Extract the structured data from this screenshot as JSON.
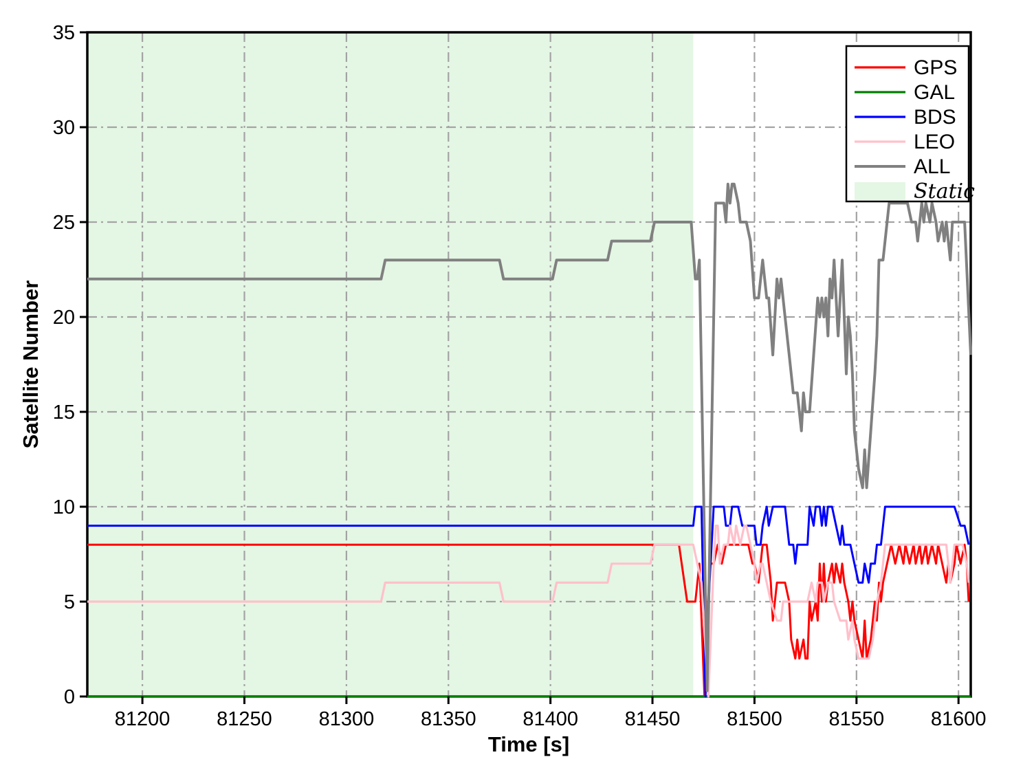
{
  "figure": {
    "xlabel": "Time [s]",
    "ylabel": "Satellite Number"
  },
  "chart_data": {
    "type": "line",
    "title": "",
    "xlabel": "Time [s]",
    "ylabel": "Satellite Number",
    "xlim": [
      81173,
      81606
    ],
    "ylim": [
      0,
      35
    ],
    "x_ticks": [
      81200,
      81250,
      81300,
      81350,
      81400,
      81450,
      81500,
      81550,
      81600
    ],
    "x_tick_labels": [
      "81200",
      "81250",
      "81300",
      "81350",
      "81400",
      "81450",
      "81500",
      "81550",
      "81600"
    ],
    "y_ticks": [
      0,
      5,
      10,
      15,
      20,
      25,
      30,
      35
    ],
    "y_tick_labels": [
      "0",
      "5",
      "10",
      "15",
      "20",
      "25",
      "30",
      "35"
    ],
    "grid": "dash-dot",
    "grid_color": "#a3a3a3",
    "legend_position": "upper right",
    "static_region": {
      "label": "Static",
      "x_start": 81173,
      "x_end": 81470,
      "color": "#e4f6e4"
    },
    "legend": [
      {
        "label": "GPS",
        "color": "#ff0000",
        "type": "line",
        "italic": false
      },
      {
        "label": "GAL",
        "color": "#008000",
        "type": "line",
        "italic": false
      },
      {
        "label": "BDS",
        "color": "#0000ff",
        "type": "line",
        "italic": false
      },
      {
        "label": "LEO",
        "color": "#ffc0cb",
        "type": "line",
        "italic": false
      },
      {
        "label": "ALL",
        "color": "#808080",
        "type": "line",
        "italic": false
      },
      {
        "label": "Static",
        "color": "#e4f6e4",
        "type": "patch",
        "italic": true
      }
    ],
    "series": [
      {
        "name": "GPS",
        "color": "#ff0000",
        "width": 3,
        "points": [
          [
            81173,
            8
          ],
          [
            81463,
            8
          ],
          [
            81467,
            5
          ],
          [
            81471,
            5
          ],
          [
            81473,
            7
          ],
          [
            81475.5,
            0
          ],
          [
            81478,
            7
          ],
          [
            81480,
            7
          ],
          [
            81482,
            8
          ],
          [
            81484,
            7
          ],
          [
            81486,
            8
          ],
          [
            81497,
            8
          ],
          [
            81499,
            7
          ],
          [
            81500,
            7
          ],
          [
            81502,
            6
          ],
          [
            81504,
            8
          ],
          [
            81506,
            8
          ],
          [
            81507,
            7
          ],
          [
            81508,
            6
          ],
          [
            81509,
            4
          ],
          [
            81511,
            6
          ],
          [
            81515,
            6
          ],
          [
            81517,
            5
          ],
          [
            81518,
            3
          ],
          [
            81520,
            2
          ],
          [
            81521,
            3
          ],
          [
            81522,
            2
          ],
          [
            81524,
            3
          ],
          [
            81525,
            2
          ],
          [
            81526,
            2
          ],
          [
            81527,
            5
          ],
          [
            81528,
            4
          ],
          [
            81530,
            5
          ],
          [
            81531,
            4
          ],
          [
            81532,
            7
          ],
          [
            81533,
            5
          ],
          [
            81534,
            7
          ],
          [
            81535,
            5
          ],
          [
            81536,
            6
          ],
          [
            81538,
            7
          ],
          [
            81539,
            6
          ],
          [
            81540,
            7
          ],
          [
            81542,
            6
          ],
          [
            81543,
            7
          ],
          [
            81544,
            6
          ],
          [
            81546,
            5
          ],
          [
            81547,
            4
          ],
          [
            81548,
            5
          ],
          [
            81549,
            4
          ],
          [
            81551,
            3
          ],
          [
            81553,
            2
          ],
          [
            81554,
            4
          ],
          [
            81555,
            2
          ],
          [
            81557,
            3
          ],
          [
            81559,
            5
          ],
          [
            81560,
            4
          ],
          [
            81561,
            6
          ],
          [
            81562,
            5
          ],
          [
            81563,
            6
          ],
          [
            81565,
            7
          ],
          [
            81567,
            8
          ],
          [
            81569,
            7
          ],
          [
            81571,
            8
          ],
          [
            81573,
            7
          ],
          [
            81574,
            8
          ],
          [
            81576,
            7
          ],
          [
            81578,
            8
          ],
          [
            81579,
            7
          ],
          [
            81581,
            8
          ],
          [
            81582,
            7
          ],
          [
            81584,
            8
          ],
          [
            81585,
            7
          ],
          [
            81587,
            8
          ],
          [
            81589,
            7
          ],
          [
            81590,
            8
          ],
          [
            81592,
            7
          ],
          [
            81594,
            6
          ],
          [
            81595,
            7
          ],
          [
            81596,
            6
          ],
          [
            81598,
            7
          ],
          [
            81599,
            8
          ],
          [
            81601,
            7
          ],
          [
            81603,
            8
          ],
          [
            81604,
            7
          ],
          [
            81605,
            5
          ]
        ]
      },
      {
        "name": "GAL",
        "color": "#008000",
        "width": 3,
        "points": [
          [
            81173,
            0
          ],
          [
            81606,
            0
          ]
        ]
      },
      {
        "name": "BDS",
        "color": "#0000ff",
        "width": 3,
        "points": [
          [
            81173,
            9
          ],
          [
            81470,
            9
          ],
          [
            81471,
            10
          ],
          [
            81474,
            10
          ],
          [
            81476,
            0
          ],
          [
            81478,
            6
          ],
          [
            81480,
            10
          ],
          [
            81485,
            10
          ],
          [
            81486,
            9
          ],
          [
            81488,
            9
          ],
          [
            81489,
            10
          ],
          [
            81492,
            10
          ],
          [
            81494,
            9
          ],
          [
            81500,
            9
          ],
          [
            81501,
            8
          ],
          [
            81503,
            8
          ],
          [
            81504,
            9
          ],
          [
            81506,
            10
          ],
          [
            81507,
            9
          ],
          [
            81509,
            10
          ],
          [
            81515,
            10
          ],
          [
            81516,
            9
          ],
          [
            81517,
            8
          ],
          [
            81519,
            8
          ],
          [
            81520,
            7
          ],
          [
            81521,
            8
          ],
          [
            81526,
            8
          ],
          [
            81527,
            10
          ],
          [
            81529,
            9
          ],
          [
            81530,
            10
          ],
          [
            81532,
            10
          ],
          [
            81533,
            9
          ],
          [
            81534,
            10
          ],
          [
            81535,
            9
          ],
          [
            81536,
            10
          ],
          [
            81538,
            10
          ],
          [
            81540,
            9
          ],
          [
            81542,
            8
          ],
          [
            81543,
            9
          ],
          [
            81544,
            8
          ],
          [
            81547,
            8
          ],
          [
            81549,
            7
          ],
          [
            81551,
            6
          ],
          [
            81553,
            6
          ],
          [
            81554,
            7
          ],
          [
            81556,
            6
          ],
          [
            81557,
            7
          ],
          [
            81559,
            7
          ],
          [
            81560,
            8
          ],
          [
            81562,
            8
          ],
          [
            81564,
            10
          ],
          [
            81598,
            10
          ],
          [
            81601,
            9
          ],
          [
            81603,
            9
          ],
          [
            81605,
            8
          ]
        ]
      },
      {
        "name": "LEO",
        "color": "#ffc0cb",
        "width": 3.2,
        "points": [
          [
            81173,
            5
          ],
          [
            81317,
            5
          ],
          [
            81319,
            6
          ],
          [
            81375,
            6
          ],
          [
            81377,
            5
          ],
          [
            81401,
            5
          ],
          [
            81403,
            6
          ],
          [
            81428,
            6
          ],
          [
            81430,
            7
          ],
          [
            81449,
            7
          ],
          [
            81451,
            8
          ],
          [
            81470,
            8
          ],
          [
            81472,
            7
          ],
          [
            81474,
            6
          ],
          [
            81477.4,
            0
          ],
          [
            81480,
            7
          ],
          [
            81481,
            9
          ],
          [
            81482,
            9
          ],
          [
            81483,
            7
          ],
          [
            81485,
            8
          ],
          [
            81487,
            8
          ],
          [
            81488,
            9
          ],
          [
            81490,
            8
          ],
          [
            81491,
            9
          ],
          [
            81493,
            8
          ],
          [
            81495,
            9
          ],
          [
            81496,
            9
          ],
          [
            81498,
            8
          ],
          [
            81500,
            7
          ],
          [
            81501,
            6
          ],
          [
            81503,
            7
          ],
          [
            81504,
            7
          ],
          [
            81506,
            6
          ],
          [
            81508,
            5
          ],
          [
            81511,
            4
          ],
          [
            81513,
            4
          ],
          [
            81514,
            5
          ],
          [
            81526,
            5
          ],
          [
            81528,
            6
          ],
          [
            81530,
            5
          ],
          [
            81531,
            6
          ],
          [
            81533,
            6
          ],
          [
            81534,
            5
          ],
          [
            81536,
            6
          ],
          [
            81538,
            6
          ],
          [
            81539,
            5
          ],
          [
            81542,
            4
          ],
          [
            81545,
            4
          ],
          [
            81546,
            3
          ],
          [
            81548,
            4
          ],
          [
            81549,
            3
          ],
          [
            81551,
            2
          ],
          [
            81556,
            2
          ],
          [
            81558,
            3
          ],
          [
            81560,
            5
          ],
          [
            81562,
            6
          ],
          [
            81564,
            8
          ],
          [
            81594,
            8
          ],
          [
            81596,
            6
          ],
          [
            81598,
            8
          ],
          [
            81602,
            8
          ],
          [
            81604,
            7
          ],
          [
            81605,
            6
          ]
        ]
      },
      {
        "name": "ALL",
        "color": "#808080",
        "width": 4,
        "points": [
          [
            81173,
            22
          ],
          [
            81317,
            22
          ],
          [
            81319,
            23
          ],
          [
            81375,
            23
          ],
          [
            81377,
            22
          ],
          [
            81401,
            22
          ],
          [
            81403,
            23
          ],
          [
            81428,
            23
          ],
          [
            81430,
            24
          ],
          [
            81449,
            24
          ],
          [
            81451,
            25
          ],
          [
            81469,
            25
          ],
          [
            81471,
            22
          ],
          [
            81472,
            22
          ],
          [
            81473,
            23
          ],
          [
            81476.8,
            0.3
          ],
          [
            81481,
            26
          ],
          [
            81485,
            26
          ],
          [
            81486,
            25
          ],
          [
            81487,
            27
          ],
          [
            81488,
            26
          ],
          [
            81489,
            27
          ],
          [
            81490,
            27
          ],
          [
            81492,
            26
          ],
          [
            81493,
            25
          ],
          [
            81496,
            25
          ],
          [
            81498,
            24
          ],
          [
            81500,
            21
          ],
          [
            81502,
            21
          ],
          [
            81504,
            23
          ],
          [
            81506,
            21
          ],
          [
            81507,
            21
          ],
          [
            81509,
            18
          ],
          [
            81511,
            22
          ],
          [
            81512,
            21
          ],
          [
            81513,
            22
          ],
          [
            81515,
            20
          ],
          [
            81517,
            18
          ],
          [
            81519,
            16
          ],
          [
            81521,
            16
          ],
          [
            81523,
            14
          ],
          [
            81524,
            16
          ],
          [
            81525,
            15
          ],
          [
            81527,
            15
          ],
          [
            81529,
            18
          ],
          [
            81531,
            21
          ],
          [
            81532,
            20
          ],
          [
            81533,
            21
          ],
          [
            81534,
            20
          ],
          [
            81535,
            21
          ],
          [
            81536,
            19
          ],
          [
            81537,
            22
          ],
          [
            81538,
            21
          ],
          [
            81539,
            23
          ],
          [
            81541,
            19
          ],
          [
            81543,
            23
          ],
          [
            81545,
            17
          ],
          [
            81546,
            20
          ],
          [
            81547,
            19
          ],
          [
            81548,
            17
          ],
          [
            81549,
            14
          ],
          [
            81551,
            12
          ],
          [
            81553,
            11
          ],
          [
            81554,
            13
          ],
          [
            81555,
            11
          ],
          [
            81557,
            14
          ],
          [
            81559,
            17
          ],
          [
            81560,
            19
          ],
          [
            81561,
            23
          ],
          [
            81563,
            23
          ],
          [
            81566,
            26
          ],
          [
            81575,
            26
          ],
          [
            81577,
            25
          ],
          [
            81579,
            25
          ],
          [
            81580,
            24
          ],
          [
            81581,
            25
          ],
          [
            81582,
            26
          ],
          [
            81583,
            25
          ],
          [
            81584,
            26
          ],
          [
            81586,
            25
          ],
          [
            81587,
            26
          ],
          [
            81589,
            25
          ],
          [
            81590,
            24
          ],
          [
            81592,
            25
          ],
          [
            81593,
            24
          ],
          [
            81594,
            25
          ],
          [
            81596,
            23
          ],
          [
            81597,
            25
          ],
          [
            81603,
            25
          ],
          [
            81606,
            18
          ]
        ]
      }
    ]
  }
}
